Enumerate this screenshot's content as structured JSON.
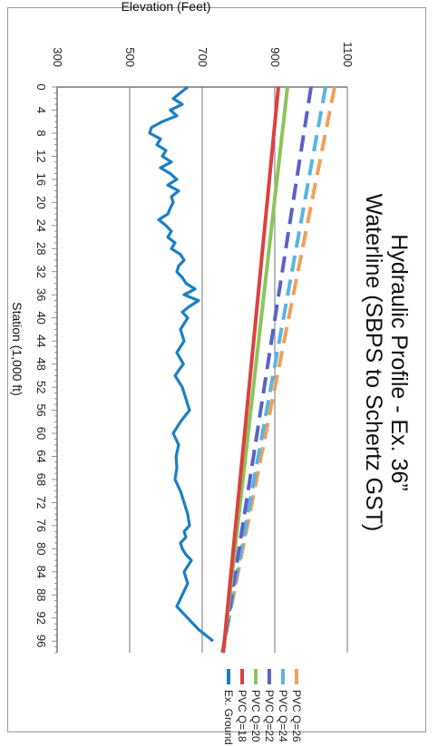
{
  "chart_data": {
    "type": "line",
    "title_line1": "Hydraulic Profile - Ex. 36”",
    "title_line2": "Waterline (SBPS to Schertz GST)",
    "xlabel": "Station (1,000 ft)",
    "ylabel": "Elevation (Feet)",
    "xlim": [
      0,
      98
    ],
    "ylim": [
      300,
      1100
    ],
    "yticks": [
      300,
      500,
      700,
      900,
      1100
    ],
    "xticks": [
      0,
      4,
      8,
      12,
      16,
      20,
      24,
      28,
      32,
      36,
      40,
      44,
      48,
      52,
      56,
      60,
      64,
      68,
      72,
      76,
      80,
      84,
      88,
      92,
      96
    ],
    "grid": "horizontal",
    "legend_position": "right",
    "series": [
      {
        "name": "PVC Q=26 MGD",
        "color": "#f0a05a",
        "dashed": true,
        "x": [
          0,
          98
        ],
        "y": [
          1065,
          755
        ]
      },
      {
        "name": "PVC Q=24 MGD",
        "color": "#5ab4e0",
        "dashed": true,
        "x": [
          0,
          98
        ],
        "y": [
          1040,
          756
        ]
      },
      {
        "name": "PVC Q=22 MGD",
        "color": "#5a62c8",
        "dashed": true,
        "x": [
          0,
          98
        ],
        "y": [
          1000,
          757
        ]
      },
      {
        "name": "PVC Q=20 MGD",
        "color": "#8cc45a",
        "dashed": false,
        "x": [
          0,
          98
        ],
        "y": [
          935,
          758
        ]
      },
      {
        "name": "PVC Q=18 MGD",
        "color": "#dd4040",
        "dashed": false,
        "x": [
          0,
          98
        ],
        "y": [
          910,
          758
        ]
      },
      {
        "name": "Ex. Ground",
        "color": "#1c7fc2",
        "dashed": false,
        "x": [
          0,
          1,
          2,
          3,
          4,
          5,
          6,
          7,
          8,
          9,
          10,
          11,
          12,
          13,
          14,
          15,
          16,
          17,
          18,
          19,
          20,
          21,
          22,
          23,
          24,
          25,
          26,
          27,
          28,
          29,
          30,
          31,
          32,
          33,
          34,
          35,
          36,
          37,
          38,
          39,
          40,
          42,
          44,
          46,
          48,
          50,
          52,
          54,
          56,
          58,
          60,
          62,
          64,
          66,
          68,
          70,
          72,
          74,
          76,
          77,
          78,
          79,
          80,
          81,
          82,
          84,
          86,
          88,
          90,
          92,
          94,
          95,
          96
        ],
        "y": [
          660,
          640,
          620,
          645,
          612,
          630,
          590,
          560,
          555,
          585,
          575,
          600,
          590,
          615,
          585,
          612,
          630,
          605,
          635,
          615,
          620,
          612,
          605,
          580,
          600,
          615,
          605,
          625,
          615,
          640,
          650,
          635,
          630,
          645,
          655,
          680,
          650,
          690,
          665,
          645,
          660,
          640,
          650,
          630,
          648,
          625,
          645,
          655,
          665,
          640,
          620,
          635,
          628,
          630,
          625,
          640,
          650,
          660,
          665,
          650,
          655,
          640,
          645,
          655,
          670,
          650,
          660,
          645,
          630,
          660,
          690,
          710,
          730
        ]
      }
    ]
  }
}
